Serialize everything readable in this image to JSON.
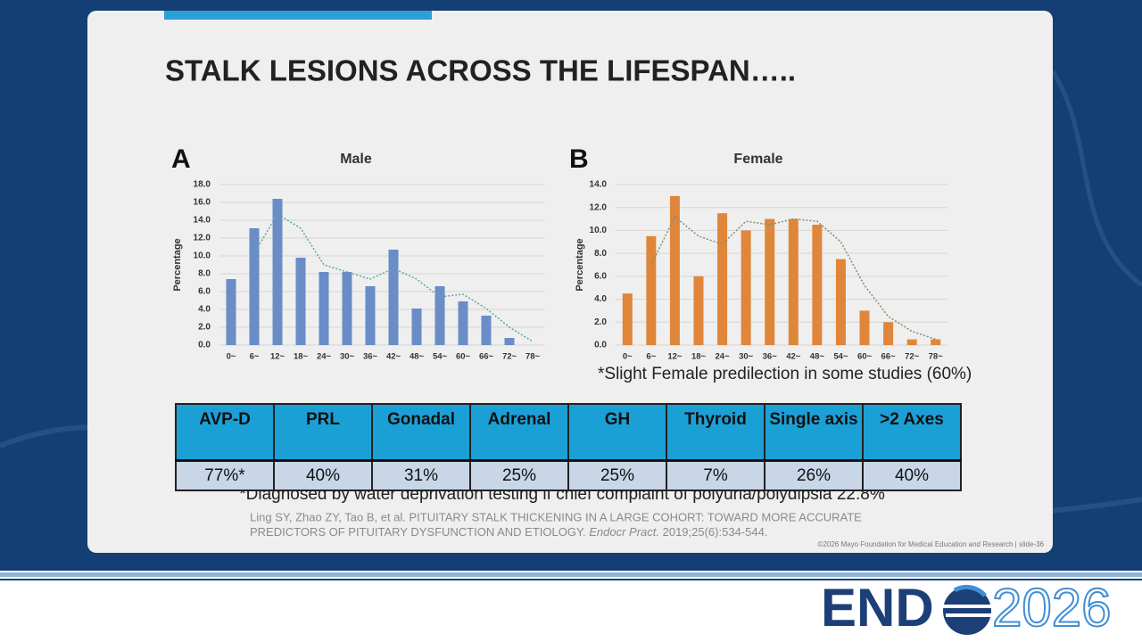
{
  "slide": {
    "title": "STALK LESIONS ACROSS THE LIFESPAN…..",
    "note": "*Slight Female predilection in some studies (60%)",
    "footnote": "*Diagnosed by water deprivation testing if chief complaint of polyuria/polydipsia 22.8%",
    "citation": {
      "line1": "Ling SY, Zhao ZY, Tao B, et al. PITUITARY STALK THICKENING IN A LARGE COHORT: TOWARD MORE ACCURATE",
      "line2_start": "PREDICTORS OF PITUITARY DYSFUNCTION AND ETIOLOGY.",
      "journal": "Endocr Pract.",
      "line2_end": "2019;25(6):534-544."
    },
    "copyright": "©2026 Mayo Foundation for Medical Education and Research  |  slide-36",
    "logo": {
      "left": "END",
      "right": "2026"
    }
  },
  "table": {
    "header": [
      "AVP-D",
      "PRL",
      "Gonadal",
      "Adrenal",
      "GH",
      "Thyroid",
      "Single axis",
      ">2 Axes"
    ],
    "rows": [
      [
        "77%*",
        "40%",
        "31%",
        "25%",
        "25%",
        "7%",
        "26%",
        "40%"
      ]
    ]
  },
  "chart_data": [
    {
      "type": "bar",
      "panel": "A",
      "title": "Male",
      "y_label": "Percentage",
      "categories": [
        "0~",
        "6~",
        "12~",
        "18~",
        "24~",
        "30~",
        "36~",
        "42~",
        "48~",
        "54~",
        "60~",
        "66~",
        "72~",
        "78~"
      ],
      "values": [
        7.4,
        13.1,
        16.4,
        9.8,
        8.2,
        8.2,
        6.6,
        10.7,
        4.1,
        6.6,
        4.9,
        3.3,
        0.8,
        0
      ],
      "trend": [
        null,
        10.3,
        14.7,
        13.1,
        9.0,
        8.2,
        7.4,
        8.6,
        7.4,
        5.4,
        5.7,
        4.1,
        2.0,
        0.4
      ],
      "color": "#6a8cc7",
      "trend_color": "#5aa7a7",
      "ylim": [
        0,
        18
      ],
      "yticks": [
        {
          "value": 0,
          "label": "0.0"
        },
        {
          "value": 2,
          "label": "2.0"
        },
        {
          "value": 4,
          "label": "4.0"
        },
        {
          "value": 6,
          "label": "6.0"
        },
        {
          "value": 8,
          "label": "8.0"
        },
        {
          "value": 10,
          "label": "10.0"
        },
        {
          "value": 12,
          "label": "12.0"
        },
        {
          "value": 14,
          "label": "14.0"
        },
        {
          "value": 16,
          "label": "16.0"
        },
        {
          "value": 18,
          "label": "18.0"
        }
      ],
      "grid": true
    },
    {
      "type": "bar",
      "panel": "B",
      "title": "Female",
      "y_label": "Percentage",
      "categories": [
        "0~",
        "6~",
        "12~",
        "18~",
        "24~",
        "30~",
        "36~",
        "42~",
        "48~",
        "54~",
        "60~",
        "66~",
        "72~",
        "78~"
      ],
      "values": [
        4.5,
        9.5,
        13,
        6,
        11.5,
        10,
        11,
        11,
        10.5,
        7.5,
        3,
        2,
        0.5,
        0.5
      ],
      "trend": [
        null,
        7,
        11.2,
        9.5,
        8.8,
        10.8,
        10.5,
        11,
        10.8,
        9,
        5.2,
        2.5,
        1.2,
        0.5
      ],
      "color": "#e0863a",
      "trend_color": "#8a8a6a",
      "ylim": [
        0,
        14
      ],
      "yticks": [
        {
          "value": 0,
          "label": "0.0"
        },
        {
          "value": 2,
          "label": "2.0"
        },
        {
          "value": 4,
          "label": "4.0"
        },
        {
          "value": 6,
          "label": "6.0"
        },
        {
          "value": 8,
          "label": "8.0"
        },
        {
          "value": 10,
          "label": "10.0"
        },
        {
          "value": 12,
          "label": "12.0"
        },
        {
          "value": 14,
          "label": "14.0"
        }
      ],
      "grid": true
    }
  ]
}
